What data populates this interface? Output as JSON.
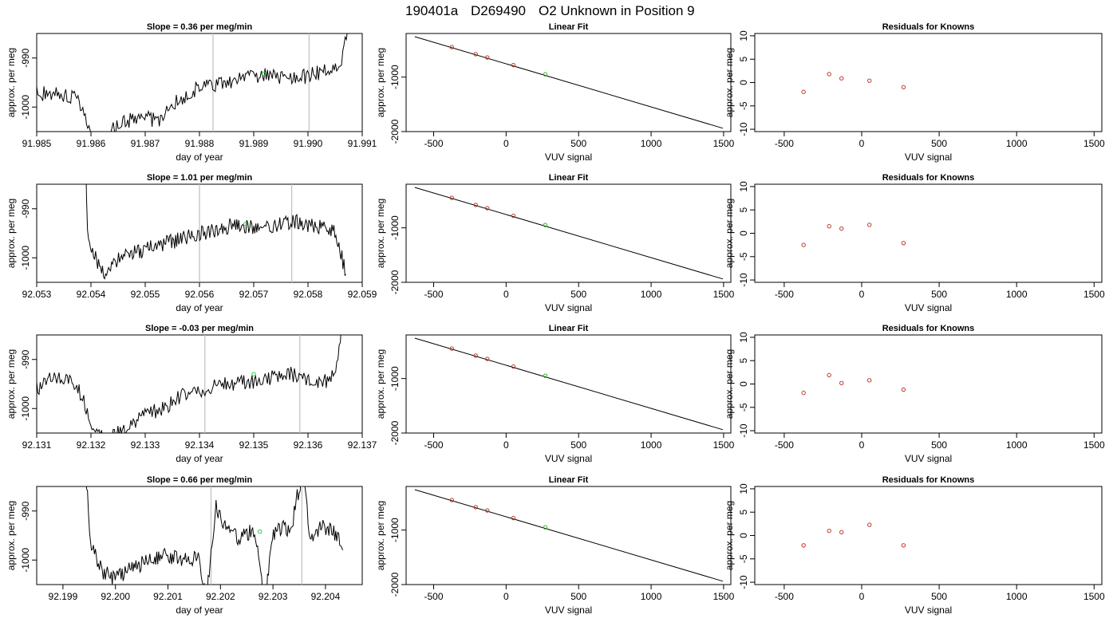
{
  "figure_title": {
    "run": "190401a",
    "sample": "D269490",
    "text": "O2 Unknown in Position  9"
  },
  "labels": {
    "time_xlabel": "day of year",
    "ylabel": "approx. per meg",
    "vuv_xlabel": "VUV signal",
    "linear_title": "Linear Fit",
    "resid_title": "Residuals for Knowns",
    "slope_prefix": "Slope = ",
    "slope_suffix": " per meg/min"
  },
  "colors": {
    "line": "#000000",
    "known_points": "#c0392b",
    "unknown_point": "#2ecc40",
    "marker_lines": "#bfbfbf",
    "frame": "#000000"
  },
  "chart_data": [
    {
      "type": "line",
      "title": "Slope =  0.36  per meg/min",
      "slope": 0.36,
      "xlabel": "day of year",
      "ylabel": "approx. per meg",
      "xlim": [
        91.985,
        91.991
      ],
      "ylim": [
        -1005,
        -985
      ],
      "xticks": [
        "91.985",
        "91.986",
        "91.987",
        "91.988",
        "91.989",
        "91.990",
        "91.991"
      ],
      "yticks": [
        "-1000",
        "-990"
      ],
      "vlines": [
        91.98825,
        91.99002
      ],
      "unknown_point": [
        91.98918,
        -993.2
      ]
    },
    {
      "type": "line",
      "title": "Slope =  1.01  per meg/min",
      "slope": 1.01,
      "xlabel": "day of year",
      "ylabel": "approx. per meg",
      "xlim": [
        92.053,
        92.059
      ],
      "ylim": [
        -1005,
        -985
      ],
      "xticks": [
        "92.053",
        "92.054",
        "92.055",
        "92.056",
        "92.057",
        "92.058",
        "92.059"
      ],
      "yticks": [
        "-1000",
        "-990"
      ],
      "vlines": [
        92.056,
        92.0577
      ],
      "unknown_point": [
        92.05685,
        -993.1
      ]
    },
    {
      "type": "line",
      "title": "Slope =  -0.03  per meg/min",
      "slope": -0.03,
      "xlabel": "day of year",
      "ylabel": "approx. per meg",
      "xlim": [
        92.131,
        92.137
      ],
      "ylim": [
        -1005,
        -985
      ],
      "xticks": [
        "92.131",
        "92.132",
        "92.133",
        "92.134",
        "92.135",
        "92.136",
        "92.137"
      ],
      "yticks": [
        "-1000",
        "-990"
      ],
      "vlines": [
        92.1341,
        92.13585
      ],
      "unknown_point": [
        92.135,
        -993.0
      ]
    },
    {
      "type": "line",
      "title": "Slope =  0.66  per meg/min",
      "slope": 0.66,
      "xlabel": "day of year",
      "ylabel": "approx. per meg",
      "xlim": [
        92.1985,
        92.2047
      ],
      "ylim": [
        -1005,
        -985
      ],
      "xticks": [
        "92.199",
        "92.200",
        "92.201",
        "92.202",
        "92.203",
        "92.204"
      ],
      "yticks": [
        "-1000",
        "-990"
      ],
      "vlines": [
        92.20182,
        92.20355
      ],
      "unknown_point": [
        92.20275,
        -994.2
      ]
    },
    {
      "type": "scatter",
      "title": "Linear Fit",
      "xlabel": "VUV signal",
      "ylabel": "approx. per meg",
      "xlim": [
        -690,
        1550
      ],
      "ylim": [
        -2000,
        -200
      ],
      "xticks": [
        -500,
        0,
        500,
        1000,
        1500
      ],
      "yticks": [
        -2000,
        -1000
      ],
      "fit_line": {
        "x": [
          -630,
          1495
        ],
        "y": [
          -258,
          -1939
        ]
      },
      "known_points": {
        "x": [
          -375,
          -210,
          -130,
          50,
          270
        ],
        "y": [
          -450,
          -580,
          -640,
          -780,
          -950
        ]
      },
      "unknown_point": [
        270,
        -950
      ]
    },
    {
      "type": "scatter",
      "title": "Linear Fit",
      "xlabel": "VUV signal",
      "ylabel": "approx. per meg",
      "xlim": [
        -690,
        1550
      ],
      "ylim": [
        -2000,
        -200
      ],
      "xticks": [
        -500,
        0,
        500,
        1000,
        1500
      ],
      "yticks": [
        -2000,
        -1000
      ],
      "fit_line": {
        "x": [
          -630,
          1495
        ],
        "y": [
          -258,
          -1939
        ]
      },
      "known_points": {
        "x": [
          -375,
          -210,
          -130,
          50,
          270
        ],
        "y": [
          -450,
          -580,
          -640,
          -780,
          -950
        ]
      },
      "unknown_point": [
        270,
        -950
      ]
    },
    {
      "type": "scatter",
      "title": "Linear Fit",
      "xlabel": "VUV signal",
      "ylabel": "approx. per meg",
      "xlim": [
        -690,
        1550
      ],
      "ylim": [
        -2000,
        -200
      ],
      "xticks": [
        -500,
        0,
        500,
        1000,
        1500
      ],
      "yticks": [
        -2000,
        -1000
      ],
      "fit_line": {
        "x": [
          -630,
          1495
        ],
        "y": [
          -258,
          -1939
        ]
      },
      "known_points": {
        "x": [
          -375,
          -210,
          -130,
          50,
          270
        ],
        "y": [
          -450,
          -580,
          -640,
          -780,
          -950
        ]
      },
      "unknown_point": [
        270,
        -950
      ]
    },
    {
      "type": "scatter",
      "title": "Linear Fit",
      "xlabel": "VUV signal",
      "ylabel": "approx. per meg",
      "xlim": [
        -690,
        1550
      ],
      "ylim": [
        -2000,
        -200
      ],
      "xticks": [
        -500,
        0,
        500,
        1000,
        1500
      ],
      "yticks": [
        -2000,
        -1000
      ],
      "fit_line": {
        "x": [
          -630,
          1495
        ],
        "y": [
          -258,
          -1939
        ]
      },
      "known_points": {
        "x": [
          -375,
          -210,
          -130,
          50,
          270
        ],
        "y": [
          -450,
          -580,
          -640,
          -780,
          -950
        ]
      },
      "unknown_point": [
        270,
        -950
      ]
    },
    {
      "type": "scatter",
      "title": "Residuals for Knowns",
      "xlabel": "VUV signal",
      "ylabel": "approx. per meg",
      "xlim": [
        -690,
        1550
      ],
      "ylim": [
        -10.5,
        10.5
      ],
      "xticks": [
        -500,
        0,
        500,
        1000,
        1500
      ],
      "yticks": [
        -10,
        -5,
        0,
        5,
        10
      ],
      "points": {
        "x": [
          -375,
          -210,
          -130,
          50,
          270
        ],
        "y": [
          -2.0,
          1.8,
          0.9,
          0.4,
          -1.0
        ]
      }
    },
    {
      "type": "scatter",
      "title": "Residuals for Knowns",
      "xlabel": "VUV signal",
      "ylabel": "approx. per meg",
      "xlim": [
        -690,
        1550
      ],
      "ylim": [
        -10.5,
        10.5
      ],
      "xticks": [
        -500,
        0,
        500,
        1000,
        1500
      ],
      "yticks": [
        -10,
        -5,
        0,
        5,
        10
      ],
      "points": {
        "x": [
          -375,
          -210,
          -130,
          50,
          270
        ],
        "y": [
          -2.5,
          1.5,
          1.0,
          1.8,
          -2.1
        ]
      }
    },
    {
      "type": "scatter",
      "title": "Residuals for Knowns",
      "xlabel": "VUV signal",
      "ylabel": "approx. per meg",
      "xlim": [
        -690,
        1550
      ],
      "ylim": [
        -10.5,
        10.5
      ],
      "xticks": [
        -500,
        0,
        500,
        1000,
        1500
      ],
      "yticks": [
        -10,
        -5,
        0,
        5,
        10
      ],
      "points": {
        "x": [
          -375,
          -210,
          -130,
          50,
          270
        ],
        "y": [
          -1.9,
          1.9,
          0.2,
          0.8,
          -1.2
        ]
      }
    },
    {
      "type": "scatter",
      "title": "Residuals for Knowns",
      "xlabel": "VUV signal",
      "ylabel": "approx. per meg",
      "xlim": [
        -690,
        1550
      ],
      "ylim": [
        -10.5,
        10.5
      ],
      "xticks": [
        -500,
        0,
        500,
        1000,
        1500
      ],
      "yticks": [
        -10,
        -5,
        0,
        5,
        10
      ],
      "points": {
        "x": [
          -375,
          -210,
          -130,
          50,
          270
        ],
        "y": [
          -2.1,
          1.0,
          0.7,
          2.3,
          -2.1
        ]
      }
    }
  ]
}
